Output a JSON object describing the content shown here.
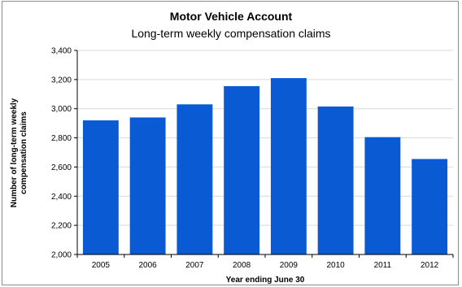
{
  "chart_data": {
    "type": "bar",
    "title": "Motor Vehicle Account",
    "subtitle": "Long-term weekly compensation claims",
    "xlabel": "Year ending June 30",
    "ylabel": "Number of long-term weekly compensation claims",
    "categories": [
      "2005",
      "2006",
      "2007",
      "2008",
      "2009",
      "2010",
      "2011",
      "2012"
    ],
    "values": [
      2920,
      2940,
      3030,
      3155,
      3210,
      3015,
      2805,
      2655
    ],
    "ylim": [
      2000,
      3400
    ],
    "yticks": [
      2000,
      2200,
      2400,
      2600,
      2800,
      3000,
      3200,
      3400
    ],
    "ytick_labels": [
      "2,000",
      "2,200",
      "2,400",
      "2,600",
      "2,800",
      "3,000",
      "3,200",
      "3,400"
    ],
    "bar_color": "#0a5ad4",
    "grid": true,
    "legend": "none"
  }
}
